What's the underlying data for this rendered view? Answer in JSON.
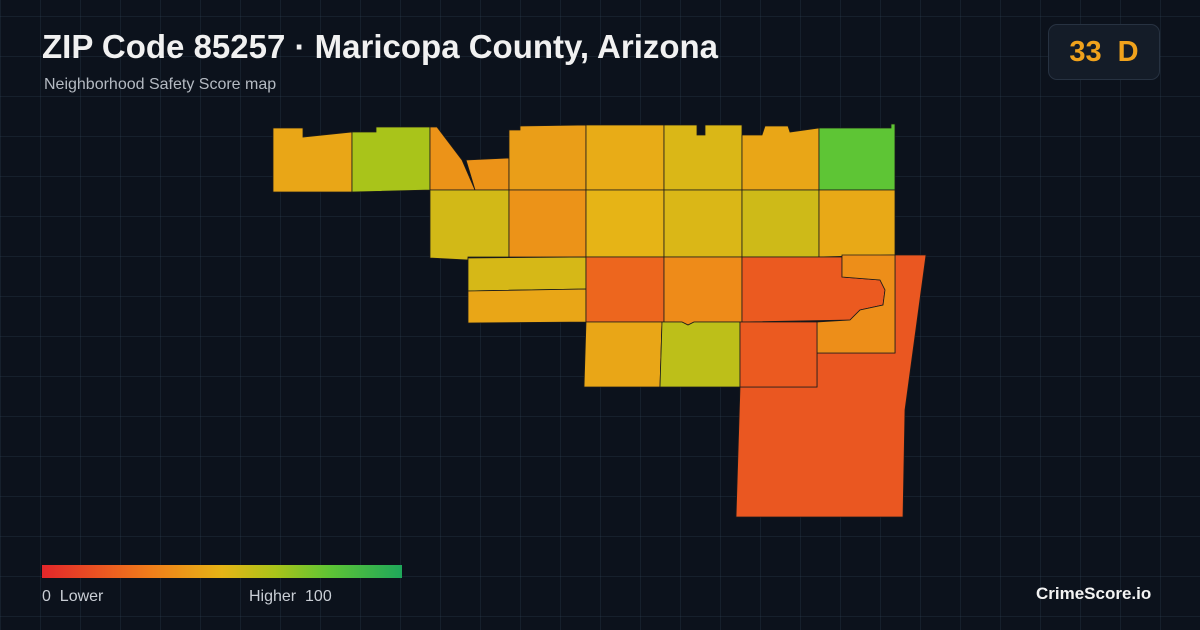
{
  "header": {
    "title": "ZIP Code 85257 · Maricopa County, Arizona",
    "subtitle": "Neighborhood Safety Score map"
  },
  "score": {
    "value": 33,
    "grade": "D"
  },
  "legend": {
    "min": 0,
    "min_label": "Lower",
    "max_label": "Higher",
    "max": 100
  },
  "regions": [
    {
      "score": 17
    },
    {
      "score": 45
    },
    {
      "score": 65
    },
    {
      "score": 38
    },
    {
      "score": 42
    },
    {
      "score": 47
    },
    {
      "score": 53
    },
    {
      "score": 45
    },
    {
      "score": 80
    },
    {
      "score": 55
    },
    {
      "score": 38
    },
    {
      "score": 50
    },
    {
      "score": 53
    },
    {
      "score": 56
    },
    {
      "score": 46
    },
    {
      "score": 54
    },
    {
      "score": 45
    },
    {
      "score": 22
    },
    {
      "score": 35
    },
    {
      "score": 18
    },
    {
      "score": 36
    },
    {
      "score": 45
    },
    {
      "score": 60
    },
    {
      "score": 18
    }
  ],
  "brand": "CrimeScore.io"
}
